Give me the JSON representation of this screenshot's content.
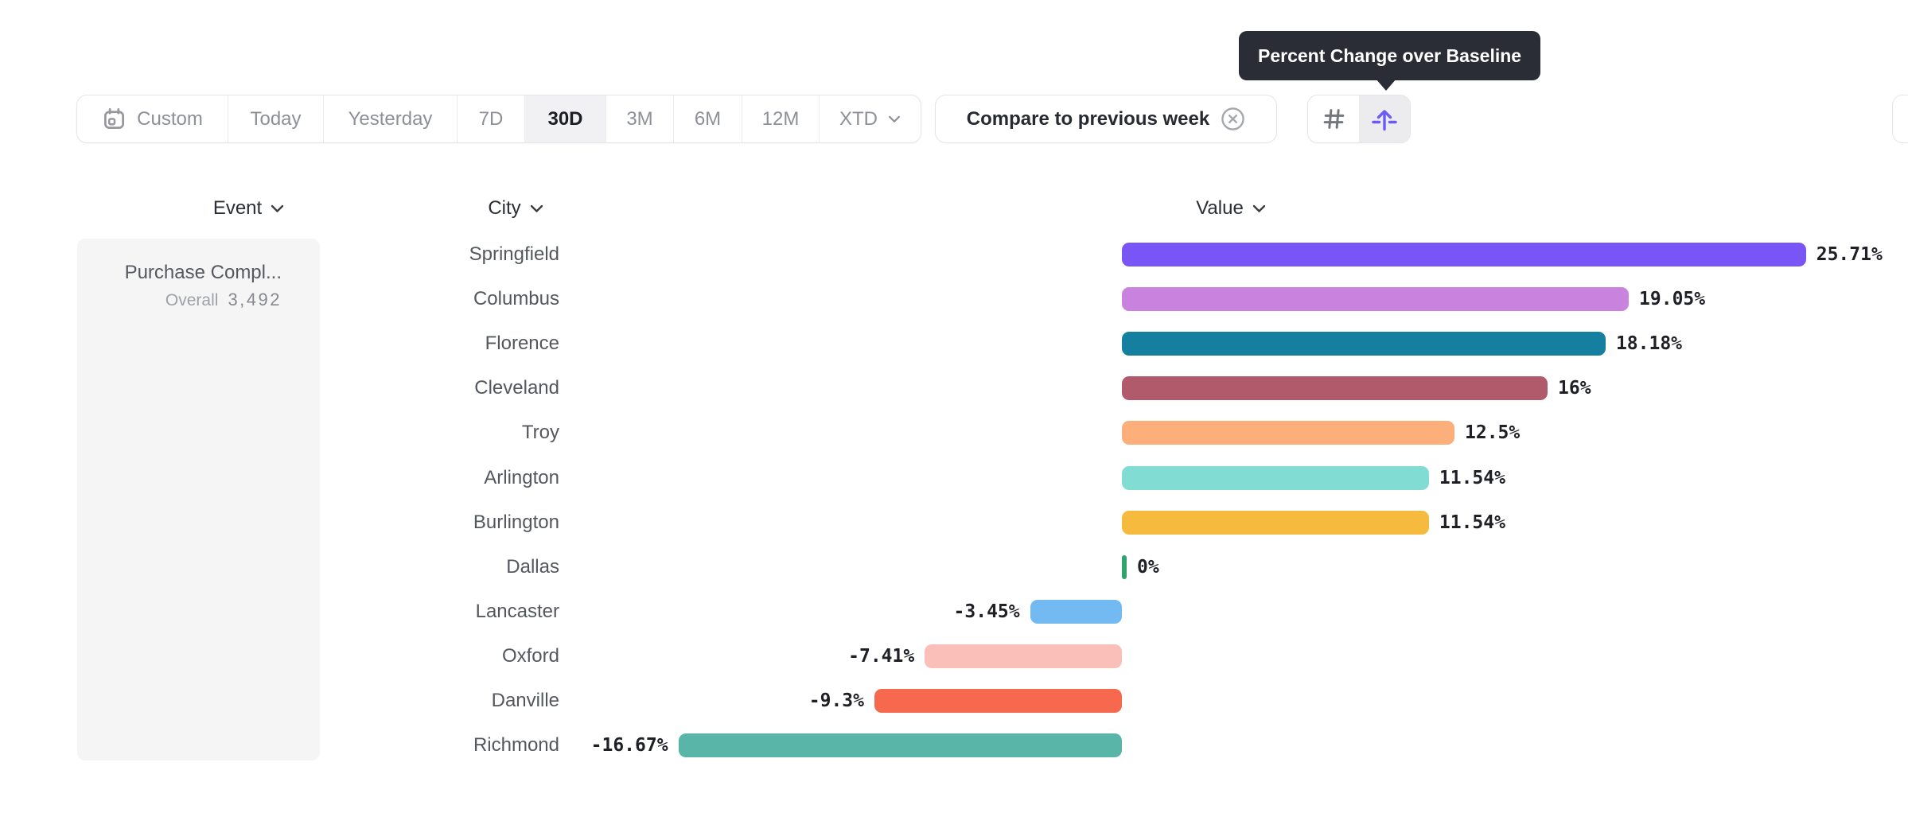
{
  "tooltip": {
    "text": "Percent Change over Baseline"
  },
  "toolbar": {
    "date_ranges": [
      {
        "label": "Custom",
        "selected": false,
        "icon": "calendar-icon"
      },
      {
        "label": "Today",
        "selected": false
      },
      {
        "label": "Yesterday",
        "selected": false
      },
      {
        "label": "7D",
        "selected": false
      },
      {
        "label": "30D",
        "selected": true
      },
      {
        "label": "3M",
        "selected": false
      },
      {
        "label": "6M",
        "selected": false
      },
      {
        "label": "12M",
        "selected": false
      },
      {
        "label": "XTD",
        "selected": false,
        "icon": "chevron-down-icon"
      }
    ],
    "compare": {
      "label": "Compare to previous week"
    },
    "view_toggle": {
      "options": [
        {
          "name": "numeric-view",
          "selected": false
        },
        {
          "name": "percent-change-over-baseline-view",
          "selected": true
        }
      ],
      "accent_color": "#6a5af7"
    }
  },
  "columns": {
    "event": "Event",
    "city": "City",
    "value": "Value"
  },
  "event_card": {
    "title": "Purchase Compl...",
    "overall_label": "Overall",
    "overall_value": "3,492"
  },
  "chart_data": {
    "type": "bar",
    "orientation": "horizontal",
    "title": "",
    "xlabel": "",
    "ylabel": "City",
    "value_format": "percent change over baseline",
    "baseline": 0,
    "xlim": [
      -20,
      30
    ],
    "grid": false,
    "legend": false,
    "categories": [
      "Springfield",
      "Columbus",
      "Florence",
      "Cleveland",
      "Troy",
      "Arlington",
      "Burlington",
      "Dallas",
      "Lancaster",
      "Oxford",
      "Danville",
      "Richmond"
    ],
    "values": [
      25.71,
      19.05,
      18.18,
      16,
      12.5,
      11.54,
      11.54,
      0,
      -3.45,
      -7.41,
      -9.3,
      -16.67
    ],
    "labels": [
      "25.71%",
      "19.05%",
      "18.18%",
      "16%",
      "12.5%",
      "11.54%",
      "11.54%",
      "0%",
      "-3.45%",
      "-7.41%",
      "-9.3%",
      "-16.67%"
    ],
    "colors": [
      "#7a55f5",
      "#c983df",
      "#147f9f",
      "#b05a6c",
      "#fcae7b",
      "#81ddd3",
      "#f5ba3e",
      "#2ea36d",
      "#74baf2",
      "#fbbfb9",
      "#f7694e",
      "#58b5a8"
    ],
    "zero_marker_color": "#2ea36d"
  }
}
